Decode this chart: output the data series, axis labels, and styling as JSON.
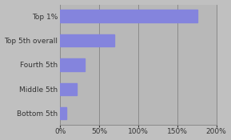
{
  "categories": [
    "Top 1%",
    "Top 5th overall",
    "Fourth 5th",
    "Middle 5th",
    "Bottom 5th"
  ],
  "values": [
    176,
    69,
    31,
    21,
    8
  ],
  "bar_color": "#8484dd",
  "background_color": "#c0c0c0",
  "plot_bg_color": "#b8b8b8",
  "xlim": [
    0,
    200
  ],
  "xticks": [
    0,
    50,
    100,
    150,
    200
  ],
  "bar_height": 0.5,
  "grid_color": "#8a8a8a",
  "text_color": "#333333",
  "font_size": 6.5
}
